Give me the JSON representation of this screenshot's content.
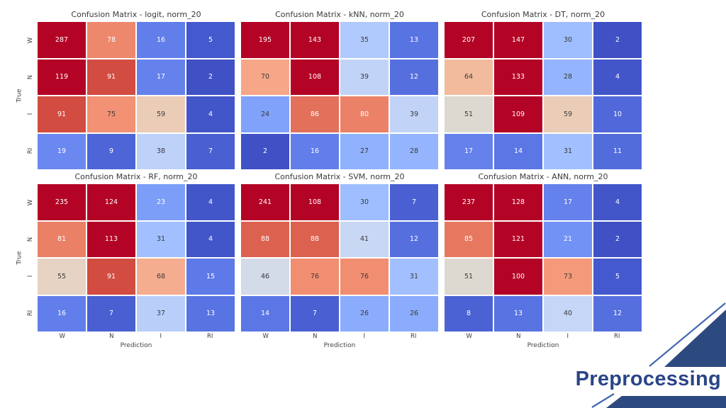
{
  "slide": {
    "footer_label": "Preprocessing",
    "footer_text_color": "#2a4586",
    "accent_navy": "#2d4a80",
    "accent_line_blue": "#4068b2",
    "background": "#ffffff"
  },
  "chart_data": [
    {
      "type": "heatmap",
      "title": "Confusion Matrix - logit, norm_20",
      "xlabel": "",
      "ylabel": "True",
      "x_categories": [
        "W",
        "N",
        "I",
        "RI"
      ],
      "y_categories": [
        "W",
        "N",
        "I",
        "RI"
      ],
      "values": [
        [
          287,
          78,
          16,
          5
        ],
        [
          119,
          91,
          17,
          2
        ],
        [
          91,
          75,
          59,
          4
        ],
        [
          19,
          9,
          38,
          7
        ]
      ],
      "colormap": "coolwarm",
      "vmin": 0,
      "vmax": 100
    },
    {
      "type": "heatmap",
      "title": "Confusion Matrix - kNN, norm_20",
      "xlabel": "",
      "ylabel": "",
      "x_categories": [
        "W",
        "N",
        "I",
        "RI"
      ],
      "y_categories": [
        "W",
        "N",
        "I",
        "RI"
      ],
      "values": [
        [
          195,
          143,
          35,
          13
        ],
        [
          70,
          108,
          39,
          12
        ],
        [
          24,
          86,
          80,
          39
        ],
        [
          2,
          16,
          27,
          28
        ]
      ],
      "colormap": "coolwarm",
      "vmin": 0,
      "vmax": 100
    },
    {
      "type": "heatmap",
      "title": "Confusion Matrix - DT, norm_20",
      "xlabel": "",
      "ylabel": "",
      "x_categories": [
        "W",
        "N",
        "I",
        "RI"
      ],
      "y_categories": [
        "W",
        "N",
        "I",
        "RI"
      ],
      "values": [
        [
          207,
          147,
          30,
          2
        ],
        [
          64,
          133,
          28,
          4
        ],
        [
          51,
          109,
          59,
          10
        ],
        [
          17,
          14,
          31,
          11
        ]
      ],
      "colormap": "coolwarm",
      "vmin": 0,
      "vmax": 100
    },
    {
      "type": "heatmap",
      "title": "Confusion Matrix - RF, norm_20",
      "xlabel": "Prediction",
      "ylabel": "True",
      "x_categories": [
        "W",
        "N",
        "I",
        "RI"
      ],
      "y_categories": [
        "W",
        "N",
        "I",
        "RI"
      ],
      "values": [
        [
          235,
          124,
          23,
          4
        ],
        [
          81,
          113,
          31,
          4
        ],
        [
          55,
          91,
          68,
          15
        ],
        [
          16,
          7,
          37,
          13
        ]
      ],
      "colormap": "coolwarm",
      "vmin": 0,
      "vmax": 100
    },
    {
      "type": "heatmap",
      "title": "Confusion Matrix - SVM, norm_20",
      "xlabel": "Prediction",
      "ylabel": "",
      "x_categories": [
        "W",
        "N",
        "I",
        "RI"
      ],
      "y_categories": [
        "W",
        "N",
        "I",
        "RI"
      ],
      "values": [
        [
          241,
          108,
          30,
          7
        ],
        [
          88,
          88,
          41,
          12
        ],
        [
          46,
          76,
          76,
          31
        ],
        [
          14,
          7,
          26,
          26
        ]
      ],
      "colormap": "coolwarm",
      "vmin": 0,
      "vmax": 100
    },
    {
      "type": "heatmap",
      "title": "Confusion Matrix - ANN, norm_20",
      "xlabel": "Prediction",
      "ylabel": "",
      "x_categories": [
        "W",
        "N",
        "I",
        "RI"
      ],
      "y_categories": [
        "W",
        "N",
        "I",
        "RI"
      ],
      "values": [
        [
          237,
          128,
          17,
          4
        ],
        [
          85,
          121,
          21,
          2
        ],
        [
          51,
          100,
          73,
          5
        ],
        [
          8,
          13,
          40,
          12
        ]
      ],
      "colormap": "coolwarm",
      "vmin": 0,
      "vmax": 100
    }
  ],
  "style": {
    "colormap_stops": [
      [
        0,
        "#3b4cc0"
      ],
      [
        5,
        "#4459cd"
      ],
      [
        10,
        "#5068d9"
      ],
      [
        15,
        "#5e7ae8"
      ],
      [
        20,
        "#6e8cf3"
      ],
      [
        25,
        "#86a8fc"
      ],
      [
        30,
        "#9ebeff"
      ],
      [
        35,
        "#b1cafd"
      ],
      [
        40,
        "#c5d6f6"
      ],
      [
        45,
        "#d1daed"
      ],
      [
        50,
        "#dbd9d3"
      ],
      [
        55,
        "#e6d3c4"
      ],
      [
        60,
        "#eccab4"
      ],
      [
        65,
        "#f3b799"
      ],
      [
        70,
        "#f6a788"
      ],
      [
        75,
        "#f29173"
      ],
      [
        80,
        "#eb8268"
      ],
      [
        85,
        "#e67860"
      ],
      [
        90,
        "#d55244"
      ],
      [
        95,
        "#c53636"
      ],
      [
        100,
        "#b40426"
      ]
    ],
    "annot_dark": "#3a3a3a",
    "annot_light": "#ffffff",
    "annot_dark_min": 24,
    "annot_dark_max": 76
  }
}
